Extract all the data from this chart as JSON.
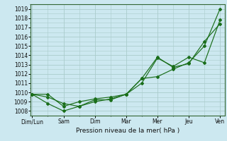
{
  "title": "",
  "xlabel": "Pression niveau de la mer( hPa )",
  "background_color": "#cce8f0",
  "grid_color": "#aacccc",
  "line_color": "#1a6e1a",
  "ylim": [
    1007.5,
    1019.5
  ],
  "xlim": [
    -0.05,
    6.15
  ],
  "xtick_labels": [
    "Dim/Lun",
    "Sam",
    "Dim",
    "Mar",
    "Mer",
    "Jeu",
    "Ven"
  ],
  "xtick_positions": [
    0,
    1,
    2,
    3,
    4,
    5,
    6
  ],
  "ytick_values": [
    1008,
    1009,
    1010,
    1011,
    1012,
    1013,
    1014,
    1015,
    1016,
    1017,
    1018,
    1019
  ],
  "series": [
    {
      "x": [
        0,
        0.5,
        1.0,
        1.5,
        2.0,
        2.5,
        3.0,
        3.5,
        4.0,
        4.5,
        5.0,
        5.5,
        6.0
      ],
      "y": [
        1009.8,
        1009.8,
        1008.5,
        1009.0,
        1009.3,
        1009.5,
        1009.8,
        1011.5,
        1011.7,
        1012.5,
        1013.2,
        1015.0,
        1019.0
      ]
    },
    {
      "x": [
        0,
        0.5,
        1.0,
        1.5,
        2.0,
        2.5,
        3.0,
        3.5,
        4.0,
        4.5,
        5.0,
        5.5,
        6.0
      ],
      "y": [
        1009.8,
        1008.8,
        1008.0,
        1008.5,
        1009.0,
        1009.3,
        1009.8,
        1011.0,
        1013.7,
        1012.8,
        1013.8,
        1013.2,
        1017.8
      ]
    },
    {
      "x": [
        0,
        0.5,
        1.0,
        1.5,
        2.0,
        2.5,
        3.0,
        3.5,
        4.0,
        4.5,
        5.0,
        5.5,
        6.0
      ],
      "y": [
        1009.8,
        1009.5,
        1008.8,
        1008.5,
        1009.2,
        1009.2,
        1009.8,
        1011.5,
        1013.8,
        1012.7,
        1013.1,
        1015.5,
        1017.4
      ]
    }
  ]
}
